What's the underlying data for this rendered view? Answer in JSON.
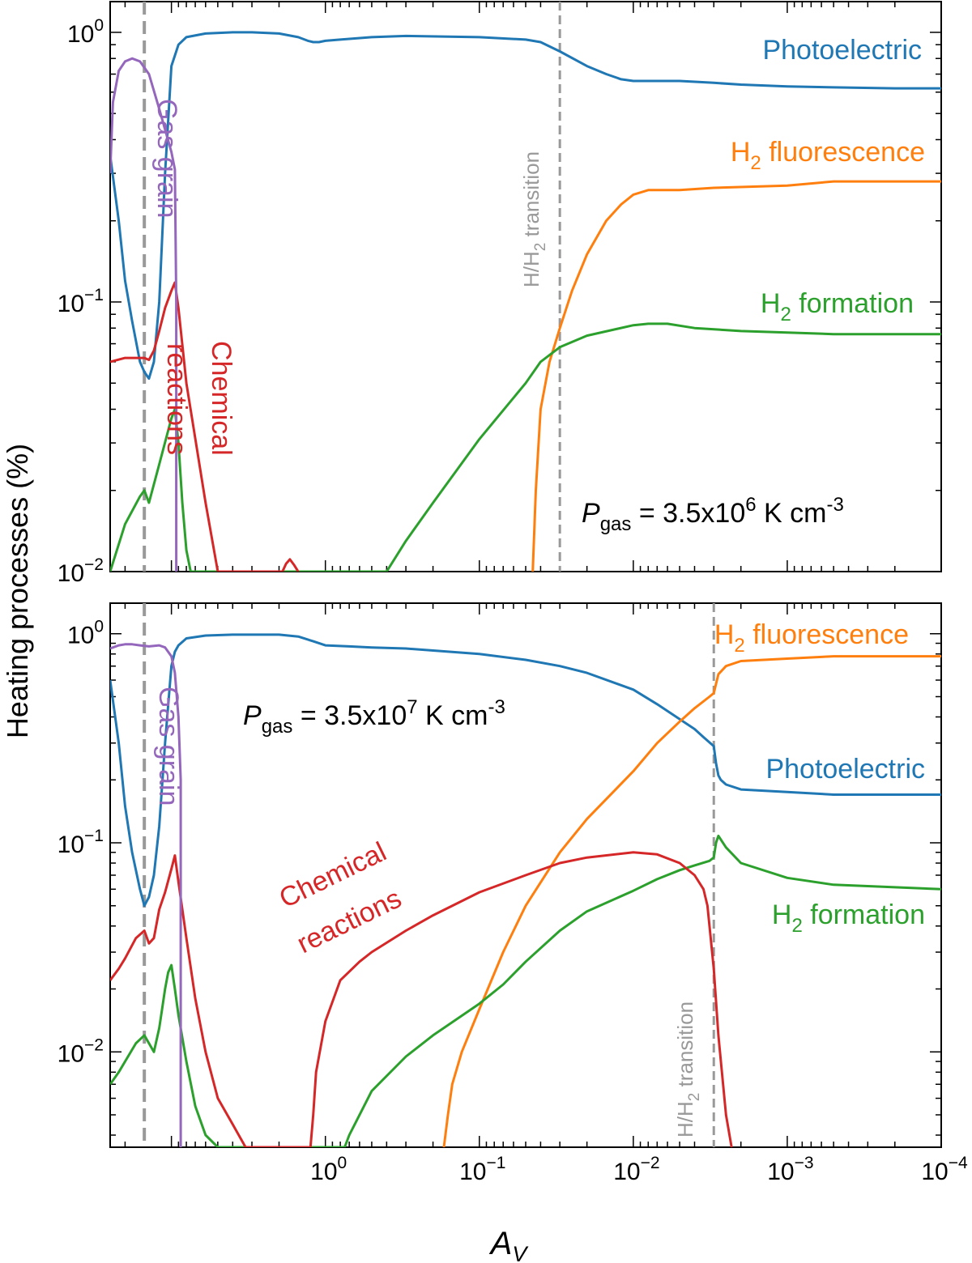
{
  "figure": {
    "ylabel": "Heating processes (%)",
    "xlabel": "A",
    "xlabel_sub": "V"
  },
  "colors": {
    "photoelectric": "#1f77b4",
    "h2_fluorescence": "#ff7f0e",
    "h2_formation": "#2ca02c",
    "chemical_reactions": "#d62728",
    "gas_grain": "#9467bd",
    "transition": "#999999"
  },
  "chart_data": [
    {
      "type": "line",
      "panel": "top",
      "log_x": true,
      "x_reversed": true,
      "log_y": true,
      "xlim": [
        25,
        0.0001
      ],
      "ylim": [
        0.01,
        1.3
      ],
      "x_ticks": [
        {
          "value": 1,
          "label_base": "10",
          "label_exp": "0"
        },
        {
          "value": 0.1,
          "label_base": "10",
          "label_exp": "−1"
        },
        {
          "value": 0.01,
          "label_base": "10",
          "label_exp": "−2"
        },
        {
          "value": 0.001,
          "label_base": "10",
          "label_exp": "−3"
        },
        {
          "value": 0.0001,
          "label_base": "10",
          "label_exp": "−4"
        }
      ],
      "y_ticks": [
        {
          "value": 1,
          "label_base": "10",
          "label_exp": "0"
        },
        {
          "value": 0.1,
          "label_base": "10",
          "label_exp": "−1"
        },
        {
          "value": 0.01,
          "label_base": "10",
          "label_exp": "−2"
        }
      ],
      "pressure_label": {
        "var": "P",
        "sub": "gas",
        "text": " = 3.5x10",
        "exp": "6",
        "unit": " K cm",
        "unit_exp": "-3",
        "position": "lower-right"
      },
      "vlines": [
        {
          "x": 15,
          "style": "thick-dashed"
        },
        {
          "x": 0.03,
          "style": "dashed",
          "label": "H/H",
          "label_sub": "2",
          "label_rest": " transition"
        }
      ],
      "series": [
        {
          "name": "Photoelectric",
          "key": "photoelectric",
          "x": [
            25,
            22,
            20,
            18,
            16,
            15,
            14,
            13,
            12,
            11,
            10,
            9.5,
            9,
            8,
            6,
            4,
            3,
            2,
            1.5,
            1.3,
            1.2,
            1.1,
            1,
            0.8,
            0.5,
            0.3,
            0.1,
            0.05,
            0.04,
            0.03,
            0.02,
            0.015,
            0.012,
            0.01,
            0.008,
            0.005,
            0.003,
            0.002,
            0.001,
            0.0005,
            0.0002,
            0.0001
          ],
          "y": [
            0.35,
            0.2,
            0.12,
            0.085,
            0.06,
            0.055,
            0.052,
            0.06,
            0.1,
            0.3,
            0.75,
            0.82,
            0.9,
            0.96,
            0.99,
            1.0,
            1.0,
            0.99,
            0.96,
            0.93,
            0.92,
            0.92,
            0.93,
            0.94,
            0.96,
            0.97,
            0.96,
            0.94,
            0.92,
            0.85,
            0.75,
            0.7,
            0.67,
            0.66,
            0.66,
            0.66,
            0.65,
            0.64,
            0.63,
            0.625,
            0.62,
            0.62
          ]
        },
        {
          "name": "H2 fluorescence",
          "key": "h2_fluorescence",
          "x": [
            0.045,
            0.043,
            0.04,
            0.035,
            0.03,
            0.025,
            0.02,
            0.015,
            0.012,
            0.01,
            0.008,
            0.006,
            0.005,
            0.003,
            0.001,
            0.0005,
            0.0001
          ],
          "y": [
            0.01,
            0.02,
            0.04,
            0.06,
            0.08,
            0.11,
            0.15,
            0.2,
            0.23,
            0.25,
            0.26,
            0.26,
            0.26,
            0.265,
            0.27,
            0.28,
            0.28
          ]
        },
        {
          "name": "H2 formation",
          "key": "h2_formation",
          "x": [
            25,
            20,
            16,
            15,
            14,
            12,
            10,
            9.5,
            9,
            8.5,
            8,
            7.5,
            0.4,
            0.3,
            0.2,
            0.1,
            0.05,
            0.04,
            0.03,
            0.02,
            0.01,
            0.008,
            0.006,
            0.004,
            0.002,
            0.001,
            0.0005,
            0.0001
          ],
          "y": [
            0.01,
            0.015,
            0.019,
            0.02,
            0.018,
            0.025,
            0.037,
            0.04,
            0.03,
            0.018,
            0.012,
            0.01,
            0.01,
            0.013,
            0.018,
            0.031,
            0.05,
            0.06,
            0.068,
            0.075,
            0.082,
            0.083,
            0.083,
            0.08,
            0.078,
            0.077,
            0.076,
            0.076
          ]
        },
        {
          "name": "Chemical reactions",
          "key": "chemical_reactions",
          "x": [
            25,
            20,
            16,
            15,
            14,
            13,
            12,
            11,
            10,
            9.5,
            9,
            8,
            6,
            5,
            1.9,
            1.8,
            1.7,
            1.6,
            1.5
          ],
          "y": [
            0.06,
            0.062,
            0.062,
            0.062,
            0.061,
            0.066,
            0.078,
            0.095,
            0.11,
            0.118,
            0.095,
            0.05,
            0.018,
            0.01,
            0.01,
            0.0107,
            0.0111,
            0.0106,
            0.01
          ]
        },
        {
          "name": "Gas grain",
          "key": "gas_grain",
          "x": [
            25,
            24,
            22,
            20,
            18,
            16,
            14,
            12,
            10,
            9.5,
            9.3,
            9.3
          ],
          "y": [
            0.3,
            0.55,
            0.72,
            0.78,
            0.8,
            0.78,
            0.7,
            0.52,
            0.36,
            0.31,
            0.1,
            0.01
          ]
        }
      ],
      "labels": [
        {
          "key": "photoelectric",
          "text": "Photoelectric"
        },
        {
          "key": "h2_fluorescence",
          "text_a": "H",
          "sub": "2",
          "text_b": " fluorescence"
        },
        {
          "key": "h2_formation",
          "text_a": "H",
          "sub": "2",
          "text_b": " formation"
        },
        {
          "key": "gas_grain",
          "text": "Gas grain",
          "rotation": 90
        },
        {
          "key": "chemical_reactions",
          "lines": [
            "Chemical",
            "reactions"
          ],
          "rotation": 90
        }
      ]
    },
    {
      "type": "line",
      "panel": "bottom",
      "log_x": true,
      "x_reversed": true,
      "log_y": true,
      "xlim": [
        25,
        0.0001
      ],
      "ylim": [
        0.0035,
        1.4
      ],
      "x_ticks": [
        {
          "value": 1,
          "label_base": "10",
          "label_exp": "0"
        },
        {
          "value": 0.1,
          "label_base": "10",
          "label_exp": "−1"
        },
        {
          "value": 0.01,
          "label_base": "10",
          "label_exp": "−2"
        },
        {
          "value": 0.001,
          "label_base": "10",
          "label_exp": "−3"
        },
        {
          "value": 0.0001,
          "label_base": "10",
          "label_exp": "−4"
        }
      ],
      "y_ticks": [
        {
          "value": 1,
          "label_base": "10",
          "label_exp": "0"
        },
        {
          "value": 0.1,
          "label_base": "10",
          "label_exp": "−1"
        },
        {
          "value": 0.01,
          "label_base": "10",
          "label_exp": "−2"
        }
      ],
      "pressure_label": {
        "var": "P",
        "sub": "gas",
        "text": " = 3.5x10",
        "exp": "7",
        "unit": " K cm",
        "unit_exp": "-3",
        "position": "upper-left"
      },
      "vlines": [
        {
          "x": 15,
          "style": "thick-dashed"
        },
        {
          "x": 0.003,
          "style": "dashed",
          "label": "H/H",
          "label_sub": "2",
          "label_rest": " transition"
        }
      ],
      "series": [
        {
          "name": "Photoelectric",
          "key": "photoelectric",
          "x": [
            25,
            22,
            20,
            18,
            16,
            15,
            14,
            13,
            12,
            11,
            10,
            9.5,
            9,
            8,
            6,
            4,
            2,
            1.5,
            1.2,
            1,
            0.7,
            0.5,
            0.3,
            0.1,
            0.05,
            0.03,
            0.02,
            0.01,
            0.007,
            0.005,
            0.004,
            0.0035,
            0.003,
            0.0029,
            0.0028,
            0.0027,
            0.0025,
            0.002,
            0.001,
            0.0005,
            0.0001
          ],
          "y": [
            0.6,
            0.3,
            0.15,
            0.09,
            0.06,
            0.05,
            0.055,
            0.07,
            0.12,
            0.3,
            0.7,
            0.82,
            0.88,
            0.95,
            0.98,
            0.99,
            0.99,
            0.97,
            0.92,
            0.88,
            0.87,
            0.86,
            0.85,
            0.8,
            0.75,
            0.7,
            0.65,
            0.54,
            0.46,
            0.39,
            0.35,
            0.32,
            0.29,
            0.24,
            0.21,
            0.2,
            0.19,
            0.18,
            0.175,
            0.17,
            0.17
          ]
        },
        {
          "name": "H2 fluorescence",
          "key": "h2_fluorescence",
          "x": [
            0.17,
            0.16,
            0.15,
            0.13,
            0.1,
            0.07,
            0.05,
            0.03,
            0.02,
            0.01,
            0.007,
            0.005,
            0.004,
            0.0032,
            0.003,
            0.0028,
            0.0025,
            0.002,
            0.001,
            0.0005,
            0.0001
          ],
          "y": [
            0.0035,
            0.005,
            0.007,
            0.01,
            0.016,
            0.03,
            0.05,
            0.09,
            0.13,
            0.22,
            0.3,
            0.38,
            0.44,
            0.5,
            0.52,
            0.64,
            0.7,
            0.74,
            0.76,
            0.78,
            0.78
          ]
        },
        {
          "name": "H2 formation",
          "key": "h2_formation",
          "x": [
            25,
            22,
            20,
            17,
            15,
            14,
            13,
            12,
            11.5,
            11,
            10.5,
            10,
            9.5,
            9,
            8,
            7,
            6,
            5,
            0.75,
            0.7,
            0.5,
            0.3,
            0.2,
            0.1,
            0.07,
            0.05,
            0.03,
            0.02,
            0.01,
            0.007,
            0.005,
            0.004,
            0.0032,
            0.003,
            0.0029,
            0.0028,
            0.0025,
            0.002,
            0.001,
            0.0005,
            0.0001
          ],
          "y": [
            0.007,
            0.008,
            0.009,
            0.011,
            0.012,
            0.011,
            0.01,
            0.013,
            0.016,
            0.02,
            0.024,
            0.026,
            0.02,
            0.015,
            0.009,
            0.0055,
            0.004,
            0.0035,
            0.0035,
            0.004,
            0.0065,
            0.0095,
            0.012,
            0.017,
            0.021,
            0.027,
            0.038,
            0.047,
            0.059,
            0.067,
            0.074,
            0.078,
            0.082,
            0.085,
            0.1,
            0.108,
            0.095,
            0.08,
            0.068,
            0.063,
            0.06
          ]
        },
        {
          "name": "Chemical reactions",
          "key": "chemical_reactions",
          "x": [
            25,
            22,
            20,
            17,
            15,
            14,
            13,
            12,
            11,
            10,
            9.5,
            9,
            8,
            7,
            6,
            5,
            4,
            3.3,
            1.25,
            1.2,
            1.15,
            1.0,
            0.8,
            0.6,
            0.5,
            0.3,
            0.2,
            0.1,
            0.05,
            0.03,
            0.02,
            0.01,
            0.007,
            0.005,
            0.004,
            0.0035,
            0.0033,
            0.003,
            0.0028,
            0.0025,
            0.0023
          ],
          "y": [
            0.022,
            0.025,
            0.028,
            0.035,
            0.038,
            0.033,
            0.035,
            0.048,
            0.058,
            0.075,
            0.087,
            0.065,
            0.035,
            0.018,
            0.01,
            0.006,
            0.0045,
            0.0035,
            0.0035,
            0.005,
            0.008,
            0.014,
            0.022,
            0.027,
            0.03,
            0.038,
            0.045,
            0.058,
            0.07,
            0.08,
            0.085,
            0.09,
            0.088,
            0.08,
            0.07,
            0.06,
            0.05,
            0.025,
            0.012,
            0.005,
            0.0035
          ]
        },
        {
          "name": "Gas grain",
          "key": "gas_grain",
          "x": [
            25,
            22,
            20,
            18,
            16,
            14,
            12,
            11,
            10,
            9.5,
            9,
            8.7,
            8.7
          ],
          "y": [
            0.85,
            0.88,
            0.89,
            0.89,
            0.88,
            0.87,
            0.88,
            0.86,
            0.78,
            0.65,
            0.4,
            0.2,
            0.0035
          ]
        }
      ],
      "labels": [
        {
          "key": "photoelectric",
          "text": "Photoelectric"
        },
        {
          "key": "h2_fluorescence",
          "text_a": "H",
          "sub": "2",
          "text_b": " fluorescence"
        },
        {
          "key": "h2_formation",
          "text_a": "H",
          "sub": "2",
          "text_b": " formation"
        },
        {
          "key": "gas_grain",
          "text": "Gas grain",
          "rotation": 90
        },
        {
          "key": "chemical_reactions",
          "lines": [
            "Chemical",
            "reactions"
          ],
          "rotation": -26
        }
      ]
    }
  ]
}
